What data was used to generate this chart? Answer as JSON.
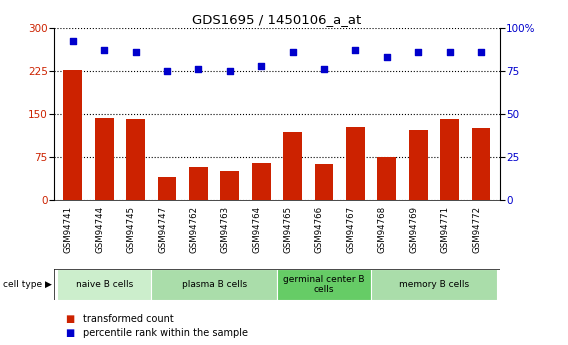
{
  "title": "GDS1695 / 1450106_a_at",
  "samples": [
    "GSM94741",
    "GSM94744",
    "GSM94745",
    "GSM94747",
    "GSM94762",
    "GSM94763",
    "GSM94764",
    "GSM94765",
    "GSM94766",
    "GSM94767",
    "GSM94768",
    "GSM94769",
    "GSM94771",
    "GSM94772"
  ],
  "transformed_count": [
    226,
    143,
    141,
    40,
    57,
    50,
    65,
    118,
    62,
    128,
    75,
    122,
    141,
    126
  ],
  "percentile_rank": [
    92,
    87,
    86,
    75,
    76,
    75,
    78,
    86,
    76,
    87,
    83,
    86,
    86,
    86
  ],
  "bar_color": "#cc2200",
  "dot_color": "#0000cc",
  "ylim_left": [
    0,
    300
  ],
  "ylim_right": [
    0,
    100
  ],
  "yticks_left": [
    0,
    75,
    150,
    225,
    300
  ],
  "yticks_right": [
    0,
    25,
    50,
    75,
    100
  ],
  "ytick_labels_right": [
    "0",
    "25",
    "50",
    "75",
    "100%"
  ],
  "cell_groups": [
    {
      "label": "naive B cells",
      "start": 0,
      "end": 3,
      "color": "#cceecc"
    },
    {
      "label": "plasma B cells",
      "start": 3,
      "end": 7,
      "color": "#aaddaa"
    },
    {
      "label": "germinal center B\ncells",
      "start": 7,
      "end": 10,
      "color": "#66cc66"
    },
    {
      "label": "memory B cells",
      "start": 10,
      "end": 14,
      "color": "#aaddaa"
    }
  ],
  "legend_bar_label": "transformed count",
  "legend_dot_label": "percentile rank within the sample",
  "cell_type_label": "cell type",
  "background_color": "#ffffff",
  "plot_bg_color": "#ffffff",
  "tick_bg_color": "#cccccc"
}
